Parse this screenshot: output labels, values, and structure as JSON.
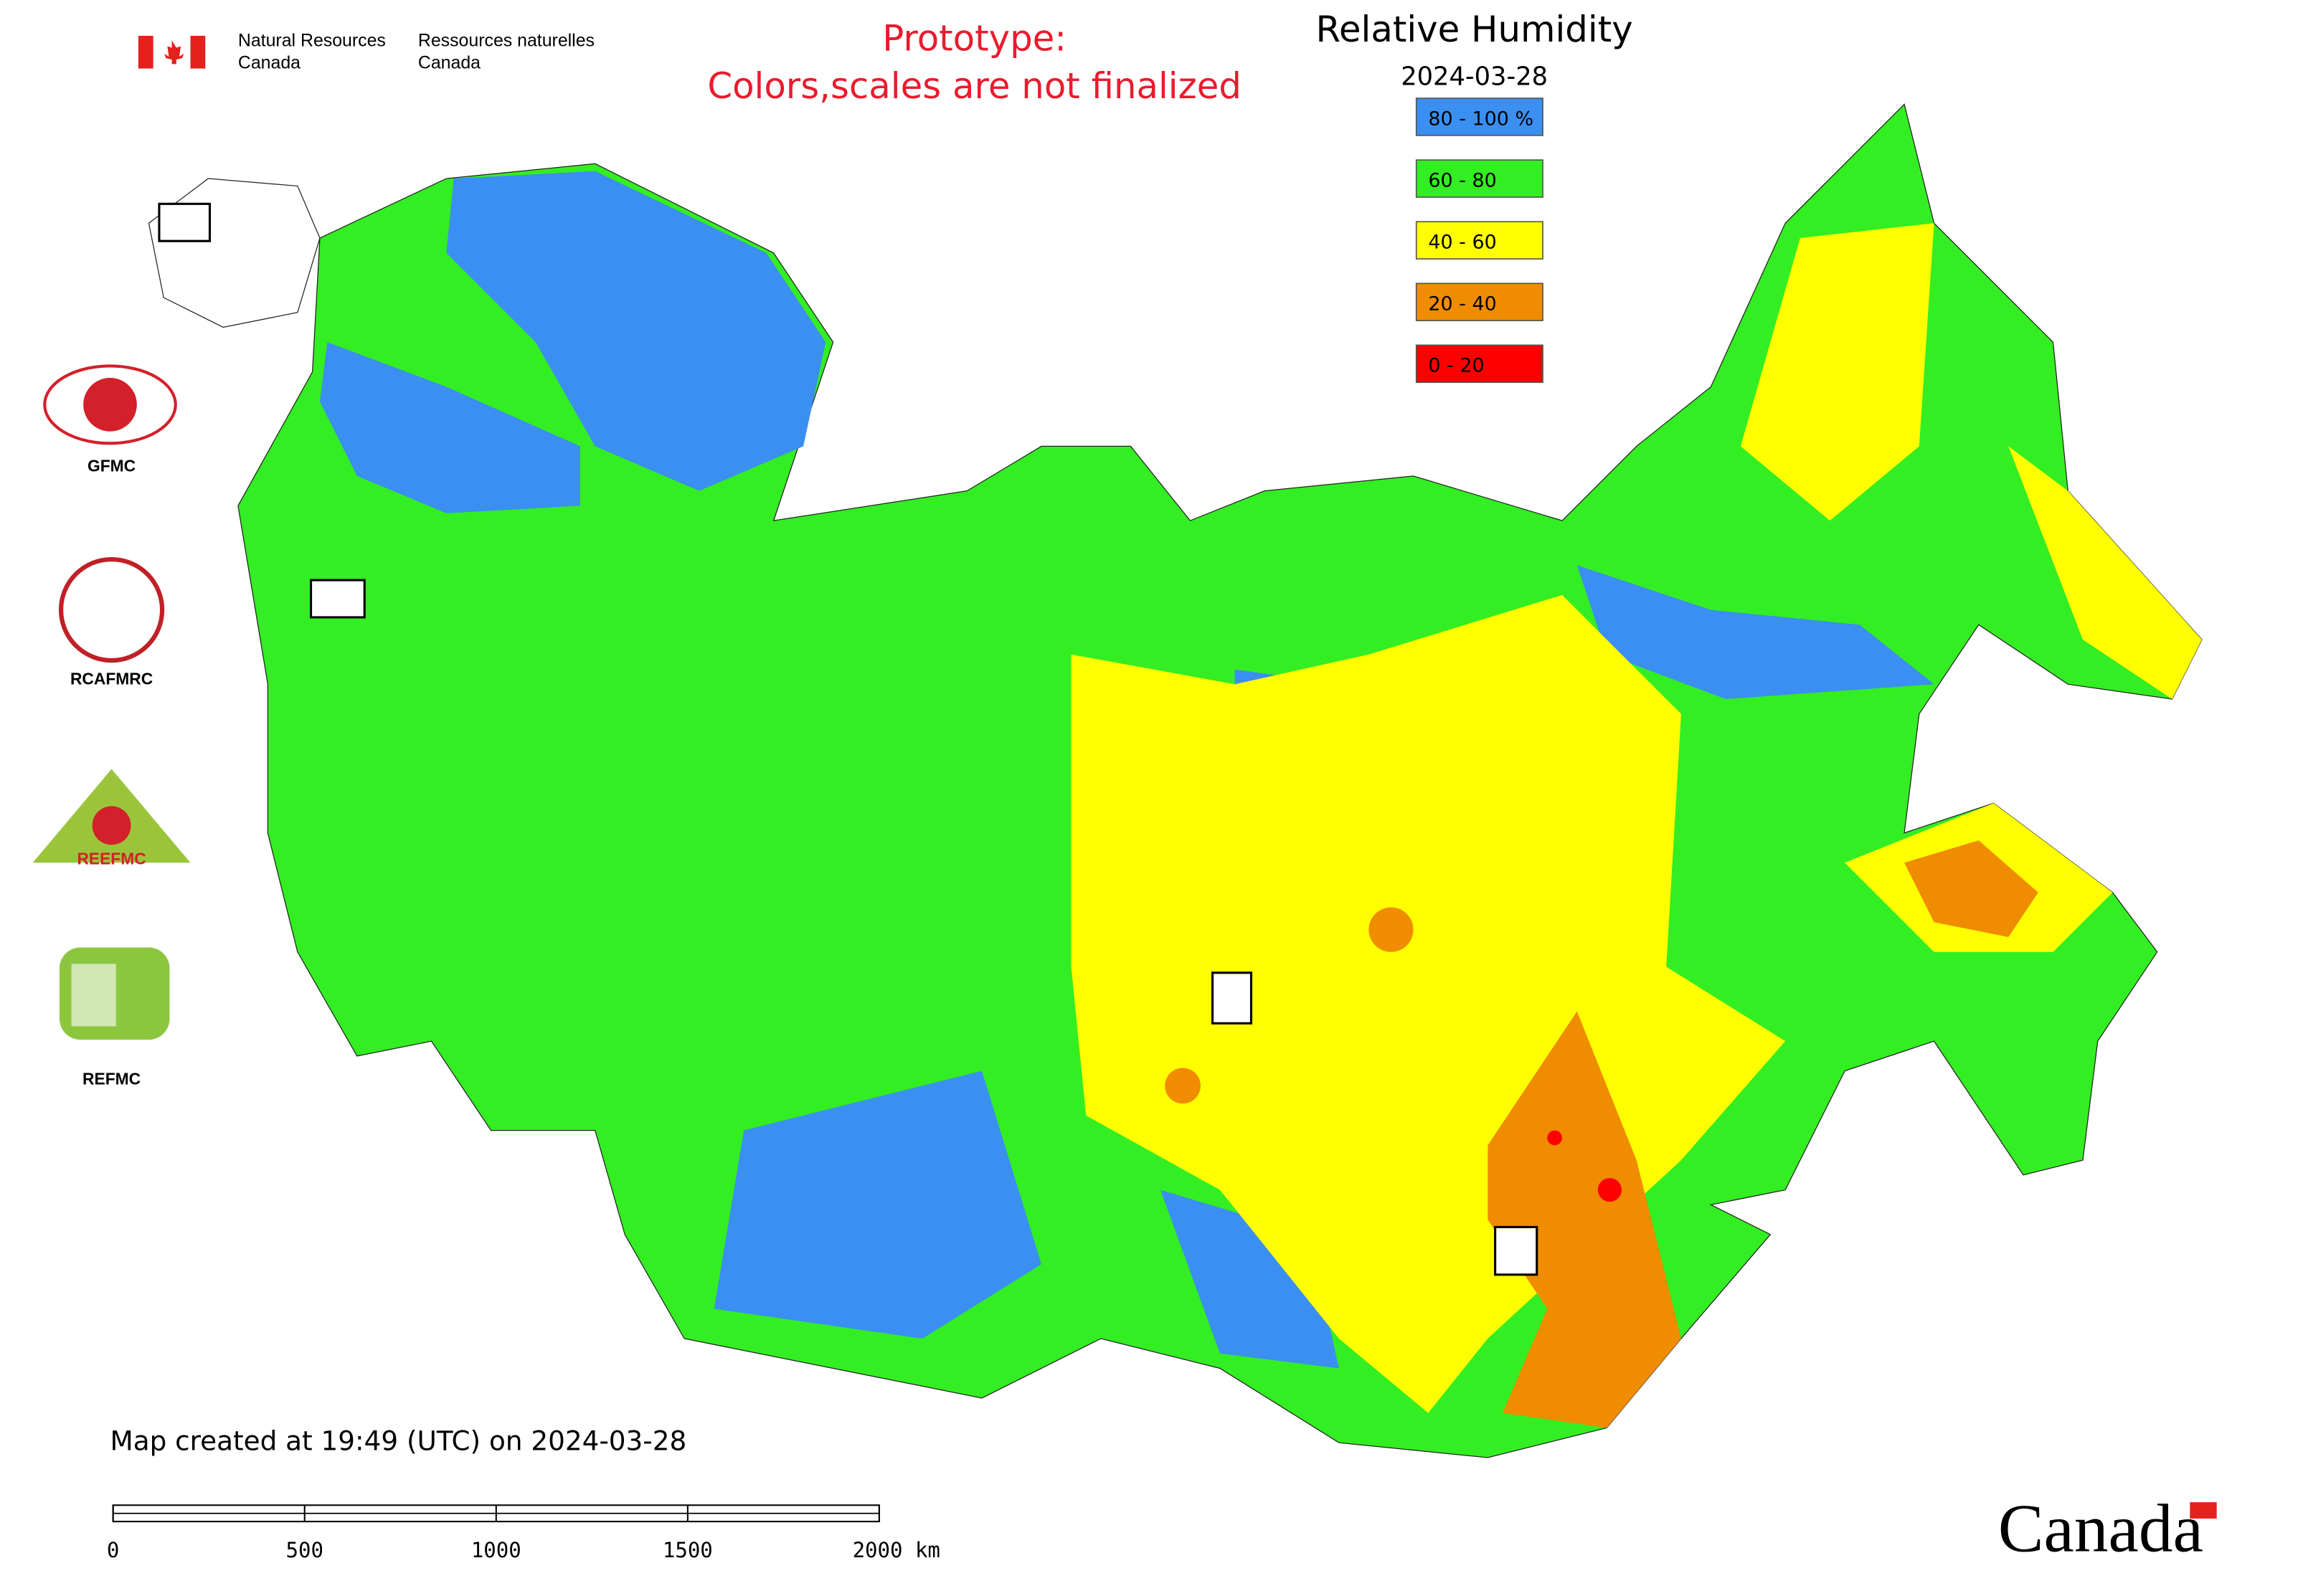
{
  "header": {
    "dept_en": [
      "Natural Resources",
      "Canada"
    ],
    "dept_fr": [
      "Ressources naturelles",
      "Canada"
    ],
    "notice": [
      "Prototype:",
      "Colors,scales are not finalized"
    ]
  },
  "legend": {
    "title": "Relative Humidity",
    "date": "2024-03-28",
    "items": [
      {
        "label": "80 - 100 %",
        "color": "#3b8ff0"
      },
      {
        "label": "60 - 80",
        "color": "#33ee22"
      },
      {
        "label": "40 - 60",
        "color": "#ffff00"
      },
      {
        "label": "20 - 40",
        "color": "#f08c00"
      },
      {
        "label": "0 - 20",
        "color": "#ff0000"
      }
    ]
  },
  "centers": [
    "GFMC",
    "RCAFMRC",
    "REEFMC",
    "REFMC"
  ],
  "footer": {
    "created": "Map created at 19:49 (UTC) on 2024-03-28",
    "scale_labels": [
      "0",
      "500",
      "1000",
      "1500",
      "2000 km"
    ],
    "wordmark": "Canada"
  }
}
